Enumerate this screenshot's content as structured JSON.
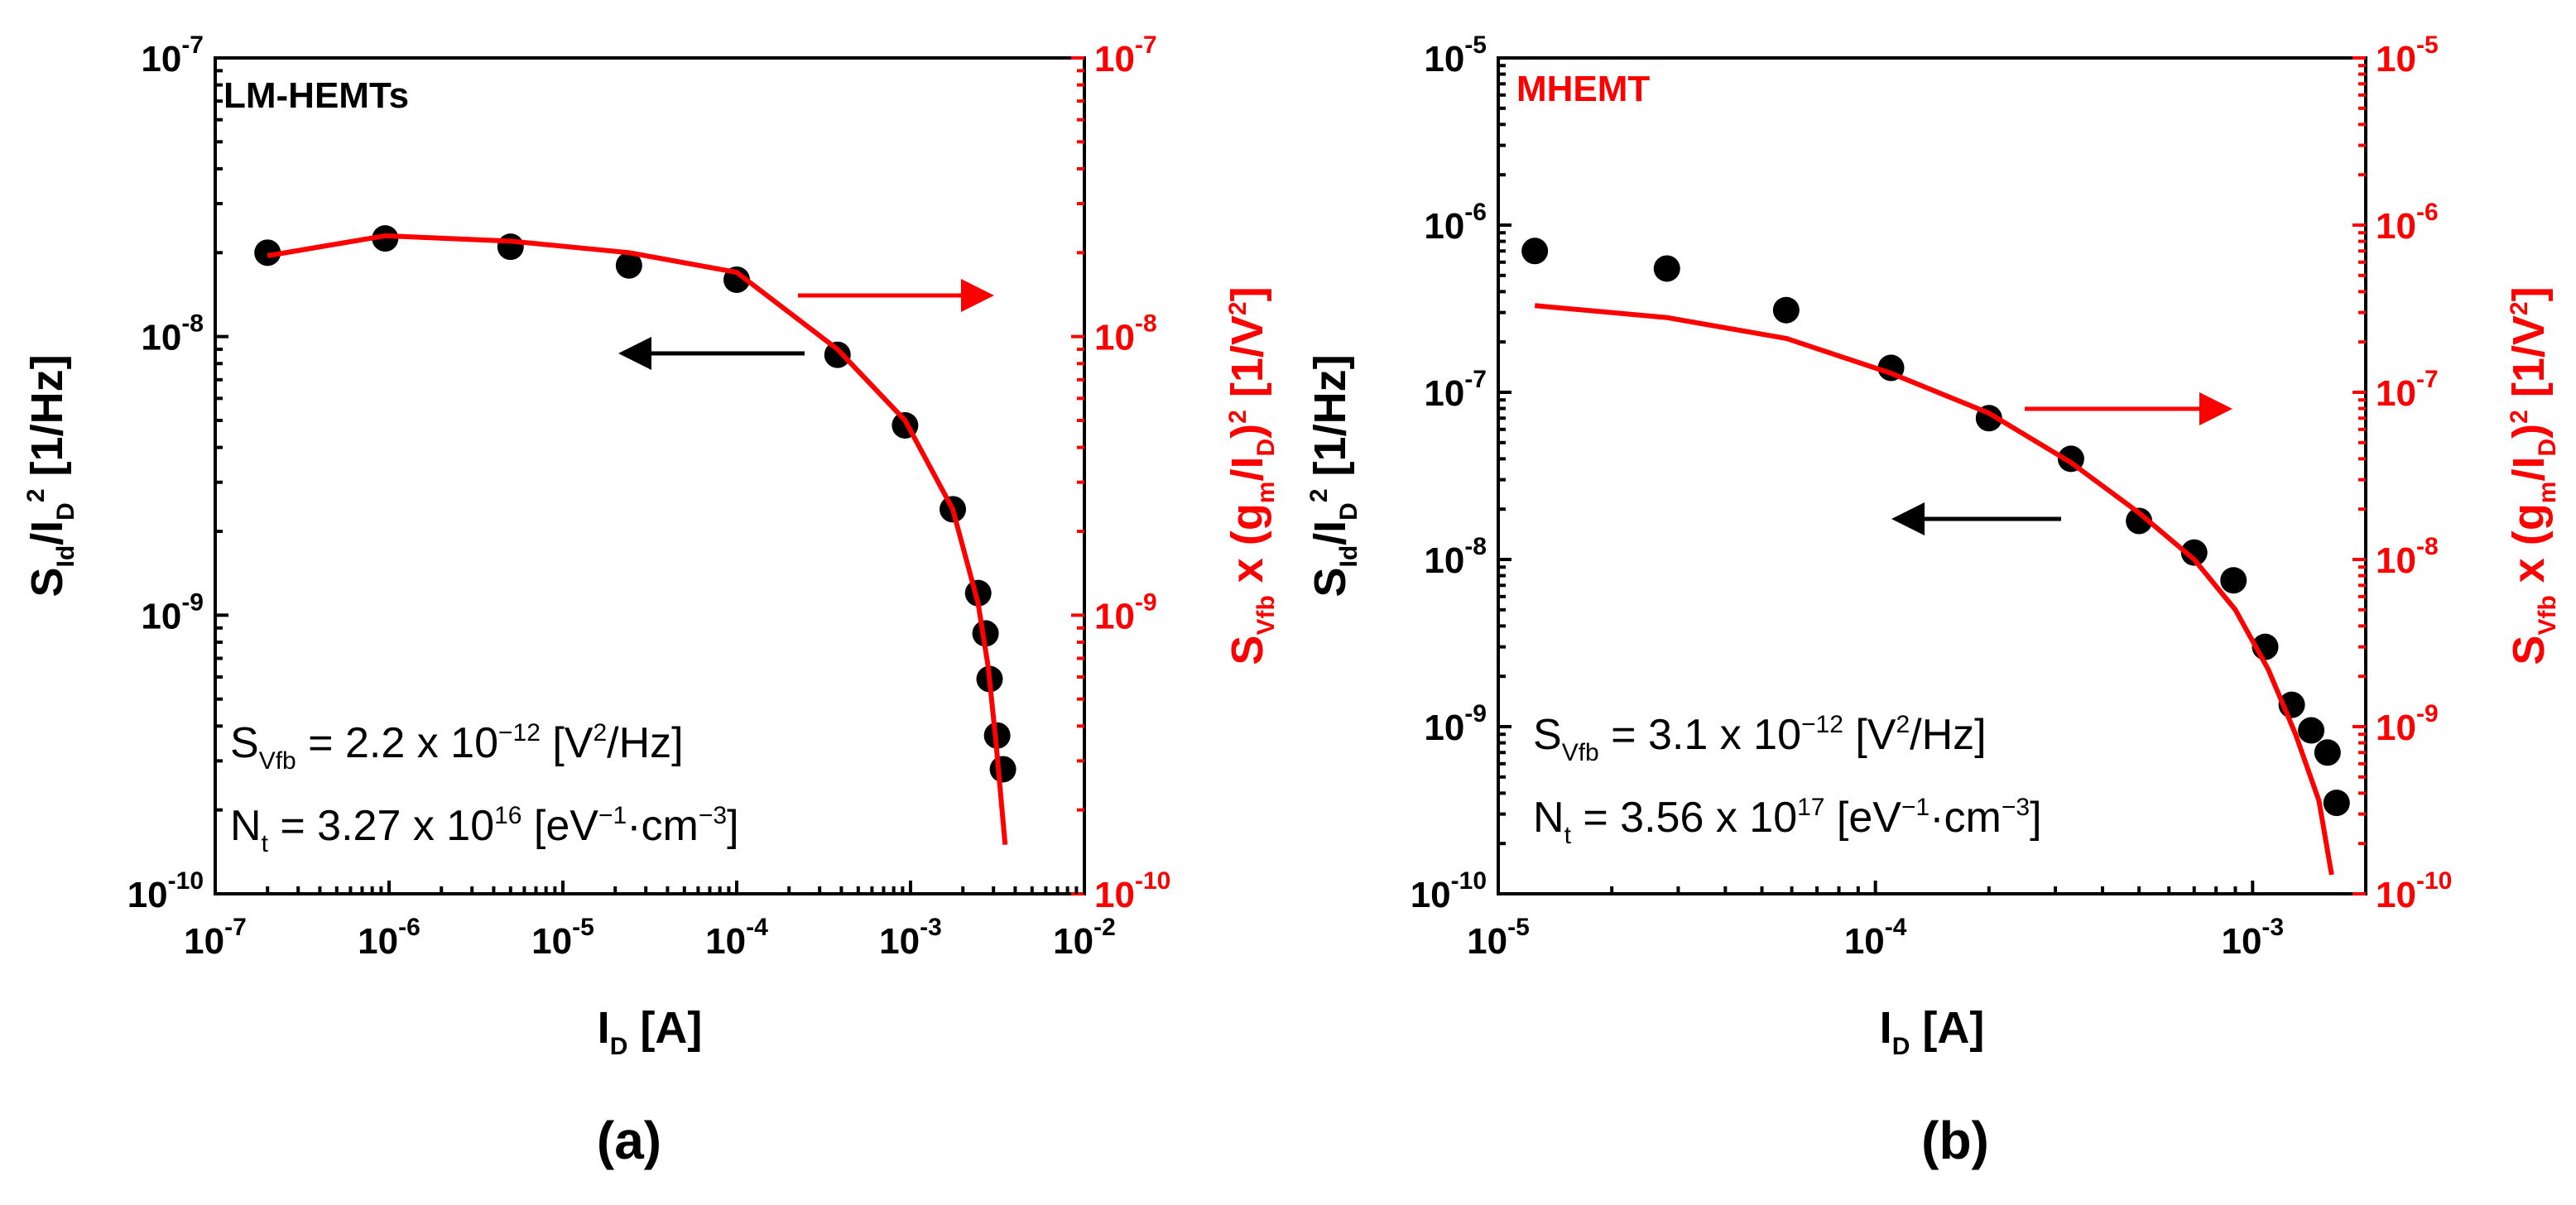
{
  "chart_data": [
    {
      "type": "scatter",
      "label": "LM-HEMTs",
      "caption": "(a)",
      "xscale": "log",
      "yscale": "log",
      "xlim_exp": [
        -7,
        -2
      ],
      "ylim_exp": [
        -10,
        -7
      ],
      "x_tick_exps": [
        "-7",
        "-6",
        "-5",
        "-4",
        "-3",
        "-2"
      ],
      "y_tick_exps": [
        "-10",
        "-9",
        "-8",
        "-7"
      ],
      "tick_base": "10",
      "xlabel": {
        "main": "I",
        "sub": "D",
        "rest": " [A]"
      },
      "ylabel_left": {
        "s": "S",
        "s_sub": "Id",
        "slash": "/I",
        "i_sub": "D",
        "sq": "2",
        "unit": " [1/Hz]"
      },
      "ylabel_right": {
        "s": "S",
        "s_sub": "Vfb",
        "mid": " x (g",
        "g_sub": "m",
        "slash": "/I",
        "i_sub": "D",
        "close": ")",
        "sq": "2",
        "unit": "  [1/V",
        "unit_sup": "2",
        "unit_end": "]"
      },
      "series": [
        {
          "name": "measured S_Id/I_D^2",
          "axis": "left",
          "color": "#000000",
          "x": [
            2e-07,
            9.5e-07,
            5e-06,
            2.4e-05,
            0.0001,
            0.00038,
            0.00093,
            0.00175,
            0.00245,
            0.0027,
            0.00285,
            0.00315,
            0.0034
          ],
          "y": [
            2e-08,
            2.25e-08,
            2.1e-08,
            1.8e-08,
            1.6e-08,
            8.6e-09,
            4.8e-09,
            2.4e-09,
            1.2e-09,
            8.6e-10,
            5.9e-10,
            3.7e-10,
            2.8e-10
          ]
        },
        {
          "name": "S_Vfb x (gm/I_D)^2 fit",
          "axis": "right",
          "color": "#ff0000",
          "x": [
            2e-07,
            9.5e-07,
            5e-06,
            2.4e-05,
            0.0001,
            0.00038,
            0.00093,
            0.00175,
            0.00245,
            0.0028,
            0.0031,
            0.0035
          ],
          "y": [
            1.95e-08,
            2.3e-08,
            2.2e-08,
            2e-08,
            1.7e-08,
            9e-09,
            5e-09,
            2.4e-09,
            1.1e-09,
            6.5e-10,
            3.5e-10,
            1.5e-10
          ]
        }
      ],
      "annotations": {
        "svfb": {
          "s": "S",
          "sub": "Vfb",
          "eq": " = 2.2 x 10",
          "exp": "−12",
          "unit": " [V",
          "unit_sup": "2",
          "unit_end": "/Hz]"
        },
        "nt": {
          "n": "N",
          "sub": "t",
          "eq": " = 3.27 x 10",
          "exp": "16",
          "unit": " [eV",
          "exp1": "−1",
          "mid": "·cm",
          "exp2": "−3",
          "unit_end": "]"
        }
      }
    },
    {
      "type": "scatter",
      "label": "MHEMT",
      "caption": "(b)",
      "xscale": "log",
      "yscale": "log",
      "xlim_exp": [
        -5,
        -2.7
      ],
      "ylim_exp": [
        -10,
        -5
      ],
      "x_tick_exps": [
        "-5",
        "-4",
        "-3"
      ],
      "y_tick_exps": [
        "-10",
        "-9",
        "-8",
        "-7",
        "-6",
        "-5"
      ],
      "tick_base": "10",
      "xlabel": {
        "main": "I",
        "sub": "D",
        "rest": " [A]"
      },
      "ylabel_left": {
        "s": "S",
        "s_sub": "Id",
        "slash": "/I",
        "i_sub": "D",
        "sq": "2",
        "unit": " [1/Hz]"
      },
      "ylabel_right": {
        "s": "S",
        "s_sub": "Vfb",
        "mid": " x (g",
        "g_sub": "m",
        "slash": "/I",
        "i_sub": "D",
        "close": ")",
        "sq": "2",
        "unit": "  [1/V",
        "unit_sup": "2",
        "unit_end": "]"
      },
      "series": [
        {
          "name": "measured S_Id/I_D^2",
          "axis": "left",
          "color": "#000000",
          "x": [
            1.25e-05,
            2.8e-05,
            5.8e-05,
            0.00011,
            0.0002,
            0.00033,
            0.0005,
            0.0007,
            0.00089,
            0.00108,
            0.00127,
            0.00143,
            0.00158,
            0.00167
          ],
          "y": [
            7e-07,
            5.5e-07,
            3.1e-07,
            1.4e-07,
            7e-08,
            4e-08,
            1.7e-08,
            1.1e-08,
            7.5e-09,
            3e-09,
            1.35e-09,
            9.5e-10,
            7e-10,
            3.5e-10
          ]
        },
        {
          "name": "S_Vfb x (gm/I_D)^2 fit",
          "axis": "right",
          "color": "#ff0000",
          "x": [
            1.25e-05,
            2.8e-05,
            5.8e-05,
            0.00011,
            0.0002,
            0.00033,
            0.0005,
            0.0007,
            0.0009,
            0.0011,
            0.0013,
            0.0015,
            0.00162
          ],
          "y": [
            3.3e-07,
            2.8e-07,
            2.1e-07,
            1.3e-07,
            7.5e-08,
            3.8e-08,
            1.9e-08,
            1e-08,
            5e-09,
            2.2e-09,
            9e-10,
            3.6e-10,
            1.3e-10
          ]
        }
      ],
      "annotations": {
        "svfb": {
          "s": "S",
          "sub": "Vfb",
          "eq": " = 3.1 x 10",
          "exp": "−12",
          "unit": " [V",
          "unit_sup": "2",
          "unit_end": "/Hz]"
        },
        "nt": {
          "n": "N",
          "sub": "t",
          "eq": " = 3.56 x 10",
          "exp": "17",
          "unit": " [eV",
          "exp1": "−1",
          "mid": "·cm",
          "exp2": "−3",
          "unit_end": "]"
        }
      }
    }
  ],
  "colors": {
    "measured": "#000000",
    "fit": "#ff0000",
    "background": "#ffffff"
  }
}
